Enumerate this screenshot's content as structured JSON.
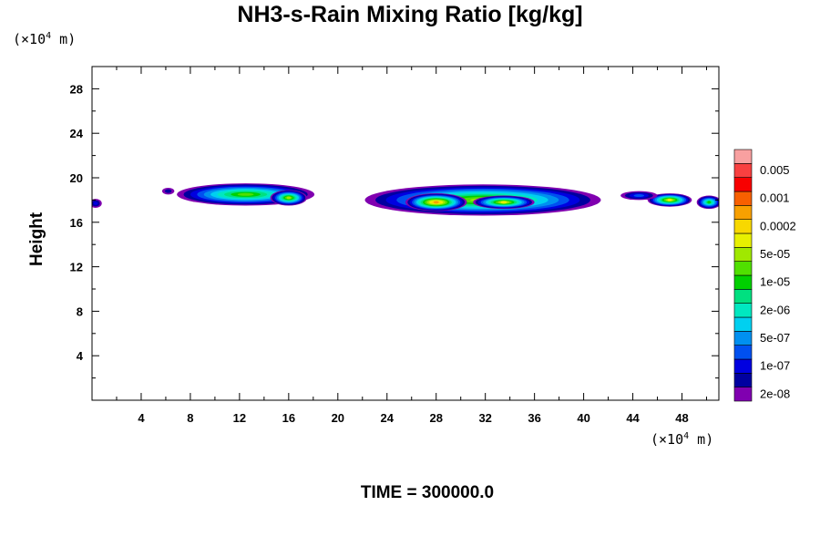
{
  "chart_data": {
    "type": "heatmap",
    "title": "NH3-s-Rain Mixing Ratio [kg/kg]",
    "xunit_prefix": "(×10",
    "xunit_exp": "4",
    "xunit_suffix": " m)",
    "yunit_prefix": "(×10",
    "yunit_exp": "4",
    "yunit_suffix": " m)",
    "ylabel": "Height",
    "xlabel": "",
    "footer": "TIME = 300000.0",
    "xlim": [
      0,
      51
    ],
    "ylim": [
      0,
      30
    ],
    "x_ticks": [
      4,
      8,
      12,
      16,
      20,
      24,
      28,
      32,
      36,
      40,
      44,
      48
    ],
    "y_ticks": [
      4,
      8,
      12,
      16,
      20,
      24,
      28
    ],
    "colorbar": {
      "colors": [
        "#8000b0",
        "#0000a0",
        "#0000e0",
        "#0050f0",
        "#0090f0",
        "#00d0f0",
        "#00e8c0",
        "#00e080",
        "#00d000",
        "#50e000",
        "#a0e800",
        "#e8f000",
        "#f8d800",
        "#f8a000",
        "#f86000",
        "#f80000",
        "#f84040",
        "#f8a0a0"
      ],
      "labels": [
        "2e-08",
        "1e-07",
        "5e-07",
        "2e-06",
        "1e-05",
        "5e-05",
        "0.0002",
        "0.001",
        "0.005"
      ]
    },
    "regions": [
      {
        "x_center": 0.3,
        "y_center": 17.7,
        "half_width": 0.5,
        "half_height": 0.4,
        "peak_level": 2
      },
      {
        "x_center": 6.2,
        "y_center": 18.8,
        "half_width": 0.5,
        "half_height": 0.3,
        "peak_level": 1
      },
      {
        "x_center": 12.5,
        "y_center": 18.5,
        "half_width": 5.6,
        "half_height": 1.0,
        "peak_level": 9
      },
      {
        "x_center": 16.0,
        "y_center": 18.2,
        "half_width": 1.5,
        "half_height": 0.7,
        "peak_level": 10
      },
      {
        "x_center": 31.8,
        "y_center": 18.0,
        "half_width": 9.6,
        "half_height": 1.4,
        "peak_level": 10
      },
      {
        "x_center": 28.0,
        "y_center": 17.8,
        "half_width": 2.5,
        "half_height": 0.8,
        "peak_level": 13
      },
      {
        "x_center": 33.5,
        "y_center": 17.8,
        "half_width": 2.5,
        "half_height": 0.6,
        "peak_level": 11
      },
      {
        "x_center": 47.0,
        "y_center": 18.0,
        "half_width": 1.8,
        "half_height": 0.6,
        "peak_level": 11
      },
      {
        "x_center": 50.2,
        "y_center": 17.8,
        "half_width": 1.0,
        "half_height": 0.6,
        "peak_level": 8
      },
      {
        "x_center": 44.5,
        "y_center": 18.4,
        "half_width": 1.5,
        "half_height": 0.4,
        "peak_level": 3
      }
    ]
  }
}
